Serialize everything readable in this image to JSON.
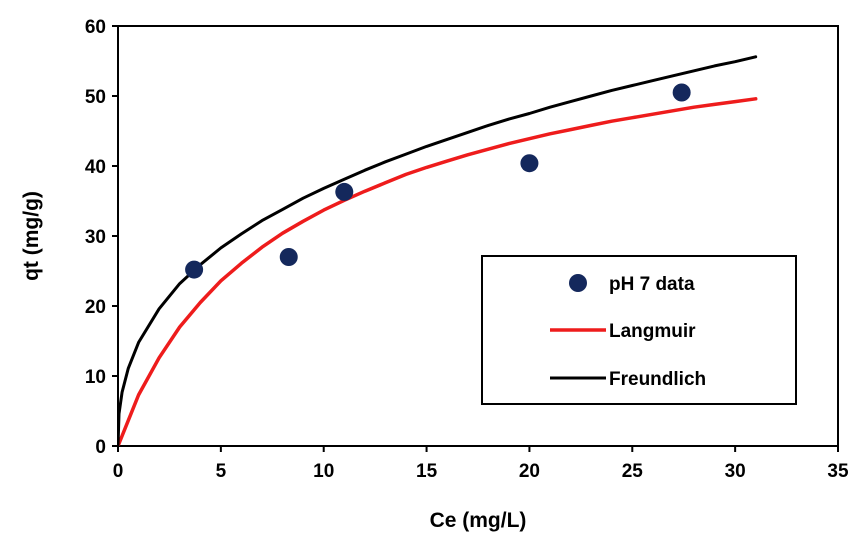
{
  "chart_data": {
    "type": "scatter",
    "xlabel": "Ce (mg/L)",
    "ylabel": "qt (mg/g)",
    "xlim": [
      0,
      35
    ],
    "ylim": [
      0,
      60
    ],
    "x_ticks": [
      0,
      5,
      10,
      15,
      20,
      25,
      30,
      35
    ],
    "y_ticks": [
      0,
      10,
      20,
      30,
      40,
      50,
      60
    ],
    "x_tick_labels": [
      "0",
      "5",
      "10",
      "15",
      "20",
      "25",
      "30",
      "35"
    ],
    "y_tick_labels": [
      "0",
      "10",
      "20",
      "30",
      "40",
      "50",
      "60"
    ],
    "grid": false,
    "legend_position": "right",
    "series": [
      {
        "name": "pH 7 data",
        "kind": "scatter",
        "color": "#14285c",
        "x": [
          3.7,
          8.3,
          11.0,
          20.0,
          27.4
        ],
        "y": [
          25.2,
          27.0,
          36.3,
          40.4,
          50.5
        ]
      },
      {
        "name": "Langmuir",
        "kind": "line",
        "color": "#ee1c1c",
        "x": [
          0,
          1,
          2,
          3,
          4,
          5,
          6,
          7,
          8,
          9,
          10,
          11,
          12,
          13,
          14,
          15,
          16,
          17,
          18,
          19,
          20,
          21,
          22,
          23,
          24,
          25,
          26,
          27,
          28,
          29,
          30,
          31
        ],
        "y": [
          0,
          7.3,
          12.6,
          17.0,
          20.5,
          23.6,
          26.1,
          28.4,
          30.4,
          32.1,
          33.7,
          35.1,
          36.4,
          37.6,
          38.8,
          39.8,
          40.7,
          41.6,
          42.4,
          43.2,
          43.9,
          44.6,
          45.2,
          45.8,
          46.4,
          46.9,
          47.4,
          47.9,
          48.4,
          48.8,
          49.2,
          49.6
        ]
      },
      {
        "name": "Freundlich",
        "kind": "line",
        "color": "#000000",
        "x": [
          0,
          0.05,
          0.2,
          0.5,
          1,
          2,
          3,
          4,
          5,
          6,
          7,
          8,
          9,
          10,
          11,
          12,
          13,
          14,
          15,
          16,
          17,
          18,
          19,
          20,
          21,
          22,
          23,
          24,
          25,
          26,
          27,
          28,
          29,
          30,
          31
        ],
        "y": [
          0,
          4.6,
          7.7,
          11.1,
          14.8,
          19.6,
          23.2,
          25.9,
          28.3,
          30.3,
          32.2,
          33.8,
          35.4,
          36.8,
          38.1,
          39.4,
          40.6,
          41.7,
          42.8,
          43.8,
          44.8,
          45.8,
          46.7,
          47.5,
          48.4,
          49.2,
          50.0,
          50.8,
          51.5,
          52.2,
          52.9,
          53.6,
          54.3,
          54.9,
          55.6
        ]
      }
    ]
  }
}
